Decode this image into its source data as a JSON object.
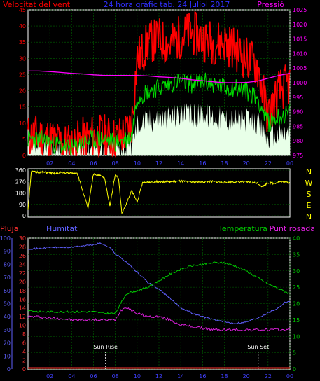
{
  "header": {
    "wind_label": "Velocitat del vent",
    "title": "24 hora gràfic tab. 24 Juliol 2017",
    "pressure_label": "Pressió"
  },
  "direction_letters": [
    "N",
    "W",
    "S",
    "E",
    "N"
  ],
  "lower_header": {
    "rain_label": "Pluja",
    "humidity_label": "Humitat",
    "temperature_label": "Temperatura",
    "dewpoint_label": "Punt rosada"
  },
  "events": {
    "sunrise": "Sun Rise",
    "sunset": "Sun Set"
  },
  "x_ticks": [
    "02",
    "04",
    "06",
    "08",
    "10",
    "12",
    "14",
    "16",
    "18",
    "20",
    "22",
    "00"
  ],
  "colors": {
    "wind_speed": "#ff0000",
    "wind_avg": "#00dd00",
    "wind_gust_fill": "#e8ffe8",
    "pressure": "#ff00ff",
    "direction": "#ffff00",
    "rain": "#ff3030",
    "humidity": "#6060ff",
    "temperature": "#00c800",
    "dewpoint": "#e020e0",
    "grid": "#006400"
  },
  "chart_data": [
    {
      "type": "line",
      "id": "wind_pressure",
      "x_range_hours": [
        0,
        24
      ],
      "left_axis": {
        "label": "Velocitat del vent",
        "ticks": [
          0,
          5,
          10,
          15,
          20,
          25,
          30,
          35,
          40,
          45
        ],
        "ylim": [
          0,
          45
        ]
      },
      "right_axis": {
        "label": "Pressió",
        "ticks": [
          975,
          980,
          985,
          990,
          995,
          1000,
          1005,
          1010,
          1015,
          1020,
          1025
        ],
        "ylim": [
          975,
          1025
        ]
      },
      "x_ticks": [
        "02",
        "04",
        "06",
        "08",
        "10",
        "12",
        "14",
        "16",
        "18",
        "20",
        "22",
        "00"
      ],
      "series": [
        {
          "name": "Velocitat del vent",
          "axis": "left",
          "x": [
            0,
            1,
            2,
            3,
            4,
            5,
            6,
            7,
            8,
            9,
            9.5,
            10,
            10.5,
            11,
            12,
            13,
            14,
            15,
            16,
            17,
            18,
            19,
            20,
            21,
            21.5,
            22,
            23,
            24
          ],
          "y": [
            6,
            6,
            5,
            4,
            3,
            5,
            6,
            6,
            5,
            7,
            10,
            30,
            32,
            35,
            36,
            34,
            37,
            38,
            36,
            35,
            35,
            33,
            30,
            28,
            20,
            12,
            20,
            22
          ]
        },
        {
          "name": "Mitjana vent",
          "axis": "left",
          "x": [
            0,
            1,
            2,
            3,
            4,
            5,
            6,
            7,
            8,
            9,
            9.5,
            10,
            11,
            12,
            13,
            14,
            15,
            16,
            17,
            18,
            19,
            20,
            21,
            22,
            23,
            24
          ],
          "y": [
            5,
            5,
            4,
            3,
            2,
            4,
            5,
            5,
            4,
            5,
            6,
            18,
            20,
            21,
            22,
            23,
            22,
            23,
            22,
            21,
            21,
            20,
            18,
            10,
            12,
            13
          ]
        },
        {
          "name": "Pressió",
          "axis": "right",
          "x": [
            0,
            1,
            2,
            3,
            4,
            5,
            6,
            7,
            8,
            9,
            10,
            11,
            12,
            13,
            14,
            15,
            16,
            17,
            18,
            19,
            20,
            21,
            22,
            23,
            24
          ],
          "y": [
            1004,
            1004,
            1003.8,
            1003.5,
            1003.2,
            1003,
            1002.7,
            1002.5,
            1002.5,
            1002.5,
            1002.5,
            1002.3,
            1002,
            1001.8,
            1001.5,
            1001,
            1000.7,
            1000.3,
            1000,
            1000,
            1000.1,
            1000.5,
            1001.5,
            1002.5,
            1003.2
          ]
        }
      ]
    },
    {
      "type": "line",
      "id": "wind_direction",
      "x_range_hours": [
        0,
        24
      ],
      "left_axis": {
        "ticks": [
          0,
          90,
          180,
          270,
          360
        ],
        "ylim": [
          0,
          360
        ]
      },
      "series": [
        {
          "name": "Direcció del vent",
          "x": [
            0,
            0.3,
            0.5,
            1,
            2,
            2.5,
            3,
            4,
            4.5,
            5,
            5.5,
            6,
            6.5,
            7,
            7.5,
            8,
            8.3,
            8.6,
            9,
            9.5,
            10,
            10.5,
            11,
            12,
            13,
            14,
            15,
            16,
            17,
            18,
            19,
            20,
            21,
            21.5,
            22,
            22.5,
            23,
            24
          ],
          "y": [
            50,
            350,
            345,
            345,
            340,
            330,
            340,
            335,
            340,
            200,
            60,
            330,
            320,
            300,
            80,
            330,
            290,
            20,
            90,
            200,
            110,
            260,
            265,
            270,
            268,
            272,
            266,
            268,
            270,
            264,
            268,
            266,
            258,
            230,
            262,
            255,
            268,
            262
          ]
        }
      ]
    },
    {
      "type": "line",
      "id": "rain_humidity_temperature",
      "x_range_hours": [
        0,
        24
      ],
      "rain_axis": {
        "label": "Pluja",
        "ticks": [
          0,
          2,
          4,
          6,
          8,
          10,
          12,
          14,
          16,
          18,
          20,
          22,
          24,
          26,
          28,
          30
        ],
        "ylim": [
          0,
          30
        ]
      },
      "humidity_axis": {
        "label": "Humitat",
        "ticks": [
          0,
          10,
          20,
          30,
          40,
          50,
          60,
          70,
          80,
          90,
          100
        ],
        "ylim": [
          0,
          100
        ]
      },
      "temperature_axis": {
        "label": "Temperatura",
        "ticks": [
          0,
          5,
          10,
          15,
          20,
          25,
          30,
          35,
          40
        ],
        "ylim": [
          0,
          40
        ]
      },
      "x_ticks": [
        "02",
        "04",
        "06",
        "08",
        "10",
        "12",
        "14",
        "16",
        "18",
        "20",
        "22",
        "00"
      ],
      "series": [
        {
          "name": "Humitat",
          "axis": "humidity",
          "x": [
            0,
            1,
            2,
            3,
            4,
            5,
            6,
            6.5,
            7,
            7.5,
            8,
            9,
            10,
            11,
            12,
            13,
            14,
            15,
            16,
            17,
            18,
            19,
            20,
            21,
            22,
            23,
            23.5,
            24
          ],
          "y": [
            92,
            92,
            93,
            93,
            93,
            94,
            95,
            96,
            95,
            93,
            88,
            82,
            74,
            66,
            61,
            54,
            47,
            43,
            40,
            38,
            36,
            35,
            36,
            39,
            43,
            47,
            51,
            52
          ]
        },
        {
          "name": "Temperatura",
          "axis": "temperature",
          "x": [
            0,
            1,
            2,
            3,
            4,
            5,
            6,
            7,
            8,
            8.5,
            9,
            10,
            11,
            12,
            13,
            14,
            15,
            16,
            17,
            18,
            19,
            20,
            21,
            22,
            23,
            24
          ],
          "y": [
            18,
            17.5,
            17.5,
            17.5,
            17.5,
            17.5,
            17.5,
            17,
            17,
            20,
            23,
            24,
            25,
            27,
            29,
            30.5,
            31.5,
            32,
            32.5,
            32.5,
            31.5,
            30,
            28,
            26,
            24.5,
            23
          ]
        },
        {
          "name": "Punt rosada",
          "axis": "temperature",
          "x": [
            0,
            1,
            2,
            3,
            4,
            5,
            6,
            7,
            8,
            8.5,
            9,
            10,
            11,
            12,
            13,
            14,
            15,
            16,
            17,
            18,
            19,
            20,
            21,
            22,
            23,
            24
          ],
          "y": [
            16,
            16,
            15.5,
            15.5,
            15,
            15,
            15,
            15,
            15,
            18,
            19,
            17,
            16,
            16,
            15,
            13.5,
            13,
            12.5,
            12,
            12,
            12,
            12,
            12,
            12,
            12,
            12
          ]
        },
        {
          "name": "Pluja",
          "axis": "rain",
          "x": [
            0,
            24
          ],
          "y": [
            0,
            0
          ]
        }
      ],
      "annotations": [
        {
          "label": "Sun Rise",
          "x": 7.1
        },
        {
          "label": "Sun Set",
          "x": 21.1
        }
      ]
    }
  ]
}
